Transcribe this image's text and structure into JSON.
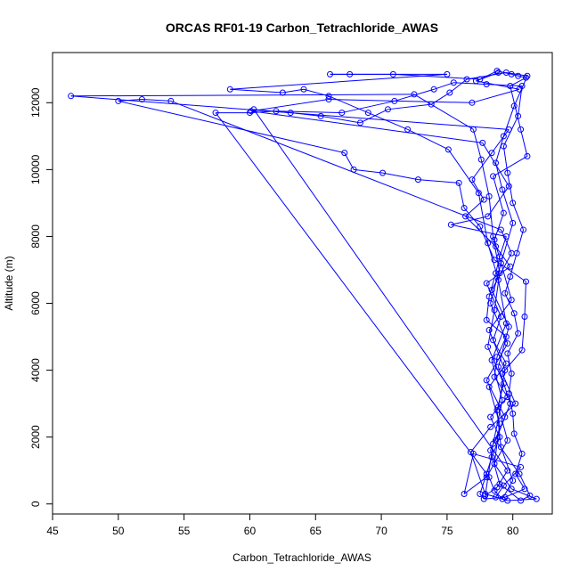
{
  "chart_data": {
    "type": "scatter",
    "title": "ORCAS RF01-19 Carbon_Tetrachloride_AWAS",
    "xlabel": "Carbon_Tetrachloride_AWAS",
    "ylabel": "Altitude (m)",
    "xlim": [
      45,
      83
    ],
    "ylim": [
      -300,
      13500
    ],
    "xticks": [
      45,
      50,
      55,
      60,
      65,
      70,
      75,
      80
    ],
    "yticks": [
      0,
      2000,
      4000,
      6000,
      8000,
      10000,
      12000
    ],
    "series_color": "#0000ff",
    "marker": "open-circle",
    "connected": true,
    "points": [
      [
        78.9,
        12900
      ],
      [
        77.2,
        12650
      ],
      [
        80.5,
        12400
      ],
      [
        76.9,
        12000
      ],
      [
        66.0,
        12100
      ],
      [
        60.1,
        11750
      ],
      [
        77.7,
        10800
      ],
      [
        79.7,
        9500
      ],
      [
        78.1,
        8600
      ],
      [
        75.3,
        8350
      ],
      [
        79.5,
        8000
      ],
      [
        79.0,
        7400
      ],
      [
        78.7,
        6900
      ],
      [
        78.2,
        6200
      ],
      [
        78.0,
        5500
      ],
      [
        79.5,
        5000
      ],
      [
        78.8,
        4400
      ],
      [
        78.6,
        3800
      ],
      [
        79.6,
        3200
      ],
      [
        78.3,
        2600
      ],
      [
        79.0,
        2000
      ],
      [
        78.4,
        1400
      ],
      [
        78.0,
        900
      ],
      [
        77.5,
        300
      ],
      [
        77.8,
        150
      ],
      [
        79.4,
        200
      ],
      [
        80.9,
        450
      ],
      [
        80.2,
        900
      ],
      [
        80.7,
        1500
      ],
      [
        80.1,
        2100
      ],
      [
        80.0,
        2700
      ],
      [
        79.7,
        3300
      ],
      [
        79.9,
        3900
      ],
      [
        79.6,
        4500
      ],
      [
        80.4,
        5100
      ],
      [
        80.1,
        5700
      ],
      [
        79.4,
        6300
      ],
      [
        79.8,
        6800
      ],
      [
        80.3,
        7500
      ],
      [
        80.8,
        8200
      ],
      [
        80.0,
        9000
      ],
      [
        79.6,
        9900
      ],
      [
        79.3,
        10700
      ],
      [
        80.4,
        11600
      ],
      [
        80.7,
        12500
      ],
      [
        78.0,
        12550
      ],
      [
        75.5,
        12600
      ],
      [
        74.0,
        12400
      ],
      [
        71.0,
        12050
      ],
      [
        67.0,
        11700
      ],
      [
        62.0,
        11750
      ],
      [
        60.0,
        11700
      ],
      [
        57.4,
        11700
      ],
      [
        78.2,
        800
      ],
      [
        78.6,
        400
      ],
      [
        79.2,
        150
      ],
      [
        80.0,
        700
      ],
      [
        79.1,
        1700
      ],
      [
        78.8,
        2800
      ],
      [
        79.3,
        3600
      ],
      [
        78.1,
        4700
      ],
      [
        78.6,
        5800
      ],
      [
        79.0,
        6900
      ],
      [
        78.5,
        8000
      ],
      [
        78.2,
        9200
      ],
      [
        77.6,
        10300
      ],
      [
        77.0,
        11200
      ],
      [
        72.5,
        12250
      ],
      [
        46.4,
        12200
      ],
      [
        79.7,
        11200
      ],
      [
        78.4,
        10500
      ],
      [
        76.9,
        9700
      ],
      [
        77.8,
        9100
      ],
      [
        76.4,
        8600
      ],
      [
        78.7,
        7700
      ],
      [
        79.8,
        7100
      ],
      [
        78.0,
        6600
      ],
      [
        79.1,
        5600
      ],
      [
        78.5,
        4900
      ],
      [
        79.5,
        4200
      ],
      [
        78.2,
        3500
      ],
      [
        79.0,
        2400
      ],
      [
        78.6,
        1200
      ],
      [
        79.9,
        450
      ],
      [
        81.8,
        150
      ],
      [
        79.6,
        100
      ],
      [
        77.9,
        300
      ],
      [
        76.8,
        1550
      ],
      [
        78.3,
        2300
      ],
      [
        80.2,
        3000
      ],
      [
        79.2,
        3900
      ],
      [
        80.7,
        4600
      ],
      [
        80.9,
        5600
      ],
      [
        81.0,
        6650
      ],
      [
        78.6,
        7300
      ],
      [
        77.5,
        8300
      ],
      [
        76.3,
        8850
      ],
      [
        75.9,
        9600
      ],
      [
        72.8,
        9700
      ],
      [
        70.1,
        9900
      ],
      [
        67.9,
        10000
      ],
      [
        67.2,
        10500
      ],
      [
        50.0,
        12050
      ],
      [
        51.8,
        12100
      ],
      [
        54.0,
        12050
      ],
      [
        79.1,
        8200
      ],
      [
        79.9,
        7500
      ],
      [
        78.4,
        6400
      ],
      [
        79.7,
        5300
      ],
      [
        78.9,
        4100
      ],
      [
        79.8,
        3000
      ],
      [
        78.7,
        1900
      ],
      [
        80.5,
        900
      ],
      [
        81.3,
        250
      ],
      [
        80.6,
        100
      ],
      [
        79.0,
        600
      ],
      [
        78.3,
        1600
      ],
      [
        79.4,
        2600
      ],
      [
        78.0,
        3700
      ],
      [
        79.6,
        4800
      ],
      [
        78.3,
        6000
      ],
      [
        79.1,
        7200
      ],
      [
        80.0,
        8400
      ],
      [
        79.2,
        9400
      ],
      [
        78.7,
        10200
      ],
      [
        79.3,
        11000
      ],
      [
        80.1,
        11900
      ],
      [
        81.1,
        12800
      ],
      [
        79.5,
        12900
      ],
      [
        76.5,
        12700
      ],
      [
        75.2,
        12300
      ],
      [
        73.8,
        11950
      ],
      [
        70.5,
        11800
      ],
      [
        68.4,
        11400
      ],
      [
        65.4,
        11600
      ],
      [
        63.1,
        11700
      ],
      [
        60.3,
        11800
      ],
      [
        79.6,
        1000
      ],
      [
        78.8,
        500
      ],
      [
        77.9,
        250
      ],
      [
        78.5,
        1800
      ],
      [
        79.2,
        3100
      ],
      [
        78.4,
        4300
      ],
      [
        79.5,
        5400
      ],
      [
        78.9,
        6700
      ],
      [
        78.1,
        7800
      ],
      [
        77.4,
        9300
      ],
      [
        75.1,
        10600
      ],
      [
        72.0,
        11200
      ],
      [
        69.0,
        11700
      ],
      [
        66.0,
        12200
      ],
      [
        64.1,
        12400
      ],
      [
        62.5,
        12300
      ],
      [
        58.5,
        12400
      ],
      [
        75.0,
        12850
      ],
      [
        67.6,
        12850
      ],
      [
        66.1,
        12850
      ],
      [
        70.9,
        12850
      ],
      [
        77.5,
        12700
      ],
      [
        78.8,
        12950
      ],
      [
        79.9,
        12850
      ],
      [
        80.4,
        12800
      ],
      [
        81.0,
        12750
      ],
      [
        79.8,
        12500
      ],
      [
        80.6,
        11200
      ],
      [
        81.1,
        10400
      ],
      [
        78.5,
        9800
      ],
      [
        79.3,
        8700
      ],
      [
        78.6,
        7900
      ],
      [
        79.9,
        6100
      ],
      [
        78.2,
        5200
      ],
      [
        79.4,
        4000
      ],
      [
        78.9,
        2900
      ],
      [
        79.6,
        1900
      ],
      [
        78.0,
        800
      ],
      [
        76.3,
        300
      ],
      [
        77.0,
        1500
      ],
      [
        80.6,
        1100
      ],
      [
        79.3,
        550
      ],
      [
        78.7,
        200
      ]
    ]
  }
}
